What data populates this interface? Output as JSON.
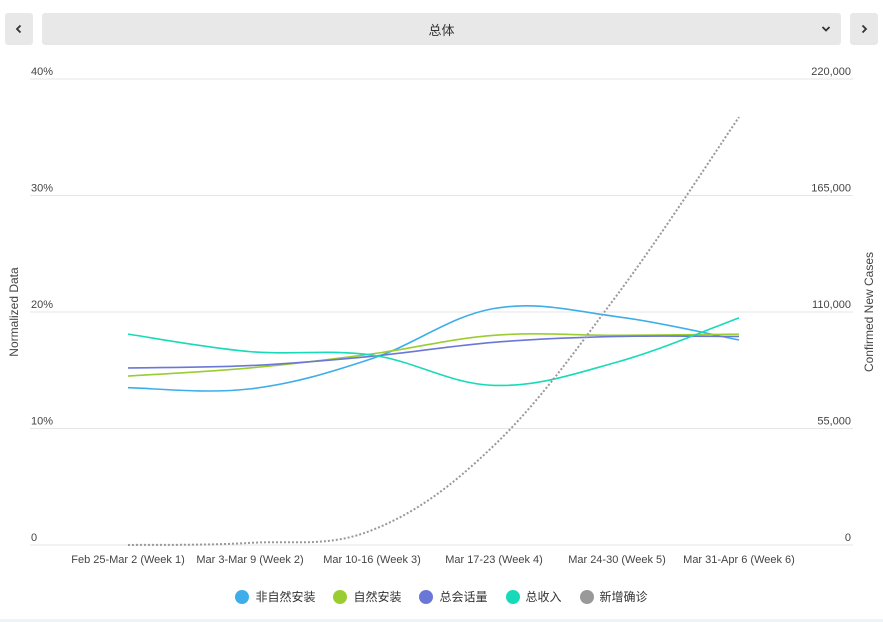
{
  "header": {
    "selector_value": "总体"
  },
  "icons": {
    "prev": "chevron-left-icon",
    "next": "chevron-right-icon",
    "dropdown": "chevron-down-icon"
  },
  "chart_data": {
    "type": "line",
    "title": "",
    "categories": [
      "Feb 25-Mar 2 (Week 1)",
      "Mar 3-Mar 9 (Week 2)",
      "Mar 10-16 (Week 3)",
      "Mar 17-23 (Week 4)",
      "Mar 24-30 (Week 5)",
      "Mar 31-Apr 6 (Week 6)"
    ],
    "y_left": {
      "label": "Normalized Data",
      "range": [
        0,
        40
      ],
      "ticks": [
        0,
        10,
        20,
        30,
        40
      ],
      "tick_labels": [
        "0",
        "10%",
        "20%",
        "30%",
        "40%"
      ]
    },
    "y_right": {
      "label": "Confirmed New Cases",
      "range": [
        0,
        220000
      ],
      "ticks": [
        0,
        55000,
        110000,
        165000,
        220000
      ],
      "tick_labels": [
        "0",
        "55,000",
        "110,000",
        "165,000",
        "220,000"
      ]
    },
    "grid": true,
    "legend_position": "bottom",
    "series": [
      {
        "name": "非自然安装",
        "axis": "left",
        "color": "#3daee9",
        "style": "solid",
        "values": [
          13.5,
          13.4,
          16.0,
          20.3,
          19.6,
          17.6
        ]
      },
      {
        "name": "自然安装",
        "axis": "left",
        "color": "#9acd32",
        "style": "solid",
        "values": [
          14.5,
          15.2,
          16.4,
          18.0,
          18.0,
          18.1
        ]
      },
      {
        "name": "总会话量",
        "axis": "left",
        "color": "#6b77d6",
        "style": "solid",
        "values": [
          15.2,
          15.4,
          16.2,
          17.4,
          17.9,
          17.9
        ]
      },
      {
        "name": "总收入",
        "axis": "left",
        "color": "#17dbb8",
        "style": "solid",
        "values": [
          18.1,
          16.6,
          16.3,
          13.7,
          15.7,
          19.5
        ]
      },
      {
        "name": "新增确诊",
        "axis": "right",
        "color": "#999999",
        "style": "dotted",
        "values": [
          0,
          1000,
          7000,
          47000,
          118000,
          202000
        ]
      }
    ]
  }
}
